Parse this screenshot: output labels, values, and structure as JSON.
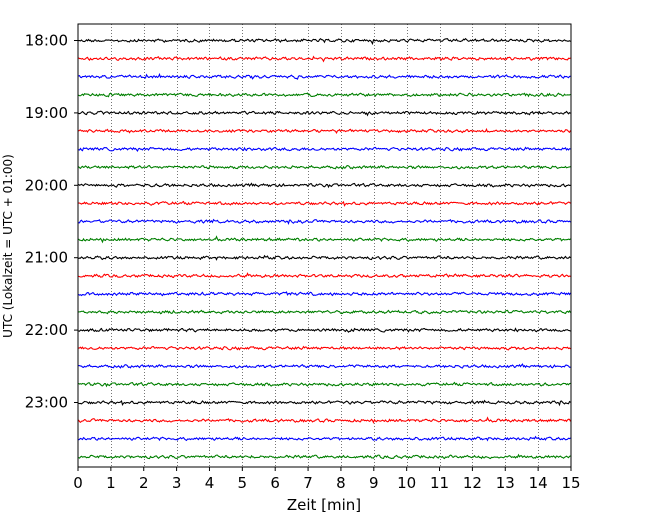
{
  "chart_data": {
    "type": "line",
    "title": "",
    "xlabel": "Zeit  [min]",
    "ylabel": "UTC (Lokalzeit = UTC + 01:00)",
    "x_ticks": [
      "0",
      "1",
      "2",
      "3",
      "4",
      "5",
      "6",
      "7",
      "8",
      "9",
      "10",
      "11",
      "12",
      "13",
      "14",
      "15"
    ],
    "xlim": [
      0,
      15
    ],
    "y_ticks": [
      "18:00",
      "19:00",
      "20:00",
      "21:00",
      "22:00",
      "23:00"
    ],
    "trace_start_times": [
      "18:00",
      "18:15",
      "18:30",
      "18:45",
      "19:00",
      "19:15",
      "19:30",
      "19:45",
      "20:00",
      "20:15",
      "20:30",
      "20:45",
      "21:00",
      "21:15",
      "21:30",
      "21:45",
      "22:00",
      "22:15",
      "22:30",
      "22:45",
      "23:00",
      "23:15",
      "23:30",
      "23:45"
    ],
    "trace_colors": [
      "#000000",
      "#ff0000",
      "#0000ff",
      "#007f00"
    ],
    "grid": "vertical dotted lines at each minute",
    "legend": "none"
  }
}
